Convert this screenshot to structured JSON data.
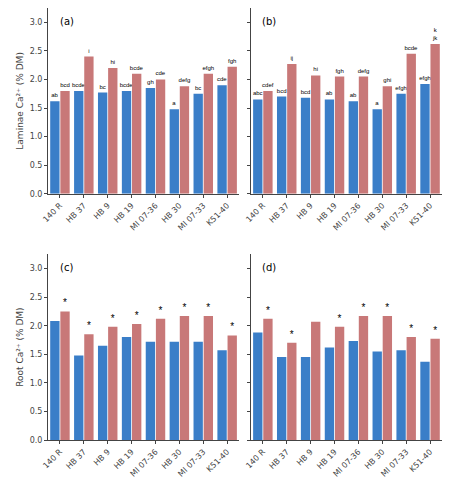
{
  "chart_data": [
    {
      "type": "bar",
      "title": "(a)",
      "ylabel": "Laminae Ca²⁺ (% DM)",
      "categories": [
        "140 R",
        "HB 37",
        "HB 9",
        "HB 19",
        "MI 07-36",
        "HB 30",
        "MI 07-33",
        "K51-40"
      ],
      "series": [
        {
          "color": "#3a7ec8",
          "values": [
            1.62,
            1.8,
            1.77,
            1.8,
            1.85,
            1.48,
            1.75,
            1.9
          ],
          "annotations": [
            "ab",
            "bcde",
            "bc",
            "bcde",
            "gh",
            "a",
            "bc",
            "cde"
          ]
        },
        {
          "color": "#c87878",
          "values": [
            1.8,
            2.4,
            2.2,
            2.1,
            2.0,
            1.88,
            2.1,
            2.22
          ],
          "annotations": [
            "bcd",
            "i",
            "hi",
            "bcde",
            "cde",
            "defg",
            "efgh",
            "fgh"
          ]
        }
      ],
      "ylim": [
        0.0,
        3.25
      ],
      "yticks": [
        {
          "value": 0.0,
          "label": "0.0"
        },
        0.5,
        {
          "value": 1.0,
          "label": "1.0"
        },
        1.5,
        {
          "value": 2.0,
          "label": "2.0"
        },
        2.5,
        {
          "value": 3.0,
          "label": "3.0"
        }
      ],
      "grid": false
    },
    {
      "type": "bar",
      "title": "(b)",
      "categories": [
        "140 R",
        "HB 37",
        "HB 9",
        "HB 19",
        "MI 07-36",
        "HB 30",
        "MI 07-33",
        "K51-40"
      ],
      "series": [
        {
          "color": "#3a7ec8",
          "values": [
            1.65,
            1.7,
            1.68,
            1.65,
            1.62,
            1.48,
            1.75,
            1.92
          ],
          "annotations": [
            "abc",
            "bcd",
            "bcd",
            "ab",
            "ab",
            "a",
            "efgh",
            "efgh"
          ]
        },
        {
          "color": "#c87878",
          "values": [
            1.8,
            2.27,
            2.07,
            2.05,
            2.05,
            1.88,
            2.45,
            2.62
          ],
          "annotations": [
            "cdef",
            "ij",
            "hi",
            "fgh",
            "defg",
            "ghi",
            "bcde",
            [
              "jk",
              "k"
            ]
          ]
        }
      ],
      "ylim": [
        0.0,
        3.25
      ],
      "yticks": [
        0.0,
        0.5,
        1.0,
        1.5,
        2.0,
        2.5,
        3.0
      ],
      "tick_labels": "x",
      "grid": false
    },
    {
      "type": "bar",
      "title": "(c)",
      "ylabel": "Root Ca²⁺ (% DM)",
      "categories": [
        "140 R",
        "HB 37",
        "HB 9",
        "HB 19",
        "MI 07-36",
        "HB 30",
        "MI 07-33",
        "K51-40"
      ],
      "series": [
        {
          "color": "#3a7ec8",
          "values": [
            2.08,
            1.48,
            1.65,
            1.8,
            1.72,
            1.72,
            1.72,
            1.57
          ]
        },
        {
          "color": "#c87878",
          "values": [
            2.25,
            1.85,
            1.98,
            2.03,
            2.12,
            2.17,
            2.17,
            1.83
          ],
          "annotations": [
            "*",
            "*",
            "*",
            "*",
            "*",
            "*",
            "*",
            "*"
          ]
        }
      ],
      "ylim": [
        0.0,
        3.25
      ],
      "yticks": [
        {
          "value": 0.0,
          "label": "0.0"
        },
        0.5,
        {
          "value": 1.0,
          "label": "1.0"
        },
        1.5,
        {
          "value": 2.0,
          "label": "2.0"
        },
        2.5,
        {
          "value": 3.0,
          "label": "3.0"
        }
      ],
      "grid": false
    },
    {
      "type": "bar",
      "title": "(d)",
      "categories": [
        "140 R",
        "HB 37",
        "HB 9",
        "HB 19",
        "MI 07-36",
        "HB 30",
        "MI 07-33",
        "K51-40"
      ],
      "series": [
        {
          "color": "#3a7ec8",
          "values": [
            1.88,
            1.45,
            1.45,
            1.62,
            1.73,
            1.55,
            1.57,
            1.37
          ]
        },
        {
          "color": "#c87878",
          "values": [
            2.12,
            1.7,
            2.07,
            1.98,
            2.17,
            2.17,
            1.8,
            1.77
          ],
          "annotations": [
            "*",
            "*",
            null,
            "*",
            "*",
            "*",
            "*",
            "*"
          ]
        }
      ],
      "ylim": [
        0.0,
        3.25
      ],
      "yticks": [
        0.0,
        0.5,
        1.0,
        1.5,
        2.0,
        2.5,
        3.0
      ],
      "tick_labels": "x",
      "grid": false
    }
  ]
}
